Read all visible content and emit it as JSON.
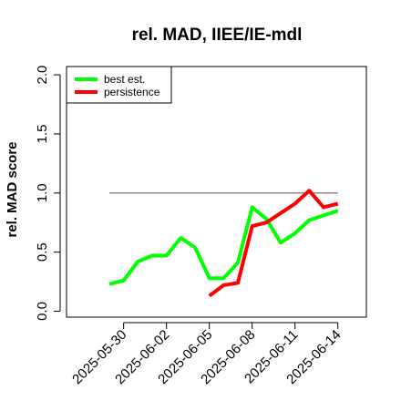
{
  "chart_data": {
    "type": "line",
    "title": "rel. MAD, IIEE/IE-mdl",
    "ylabel": "rel. MAD score",
    "xlabel": "",
    "ylim": [
      -0.05,
      2.07
    ],
    "xlim": [
      "2025-05-26",
      "2025-06-16"
    ],
    "yticks": [
      0.0,
      0.5,
      1.0,
      1.5,
      2.0
    ],
    "ytick_labels": [
      "0.0",
      "0.5",
      "1.0",
      "1.5",
      "2.0"
    ],
    "xticks": [
      "2025-05-30",
      "2025-06-02",
      "2025-06-05",
      "2025-06-08",
      "2025-06-11",
      "2025-06-14"
    ],
    "grid": false,
    "legend": {
      "placement": "top-left",
      "entries": [
        "best est.",
        "persistence"
      ]
    },
    "reference_line": {
      "y": 1.0,
      "x_start": "2025-05-29",
      "x_end": "2025-06-14",
      "color": "#666666"
    },
    "series": [
      {
        "name": "best est.",
        "color": "#00ff00",
        "x": [
          "2025-05-29",
          "2025-05-30",
          "2025-05-31",
          "2025-06-01",
          "2025-06-02",
          "2025-06-03",
          "2025-06-04",
          "2025-06-05",
          "2025-06-06",
          "2025-06-07",
          "2025-06-08",
          "2025-06-09",
          "2025-06-10",
          "2025-06-11",
          "2025-06-12",
          "2025-06-13",
          "2025-06-14"
        ],
        "values": [
          0.23,
          0.26,
          0.42,
          0.47,
          0.47,
          0.62,
          0.54,
          0.28,
          0.28,
          0.41,
          0.88,
          0.78,
          0.58,
          0.66,
          0.77,
          0.81,
          0.85
        ]
      },
      {
        "name": "persistence",
        "color": "#ff0000",
        "x": [
          "2025-06-05",
          "2025-06-06",
          "2025-06-07",
          "2025-06-08",
          "2025-06-09",
          "2025-06-10",
          "2025-06-11",
          "2025-06-12",
          "2025-06-13",
          "2025-06-14"
        ],
        "values": [
          0.13,
          0.22,
          0.24,
          0.72,
          0.75,
          0.83,
          0.91,
          1.02,
          0.88,
          0.91
        ]
      }
    ]
  }
}
